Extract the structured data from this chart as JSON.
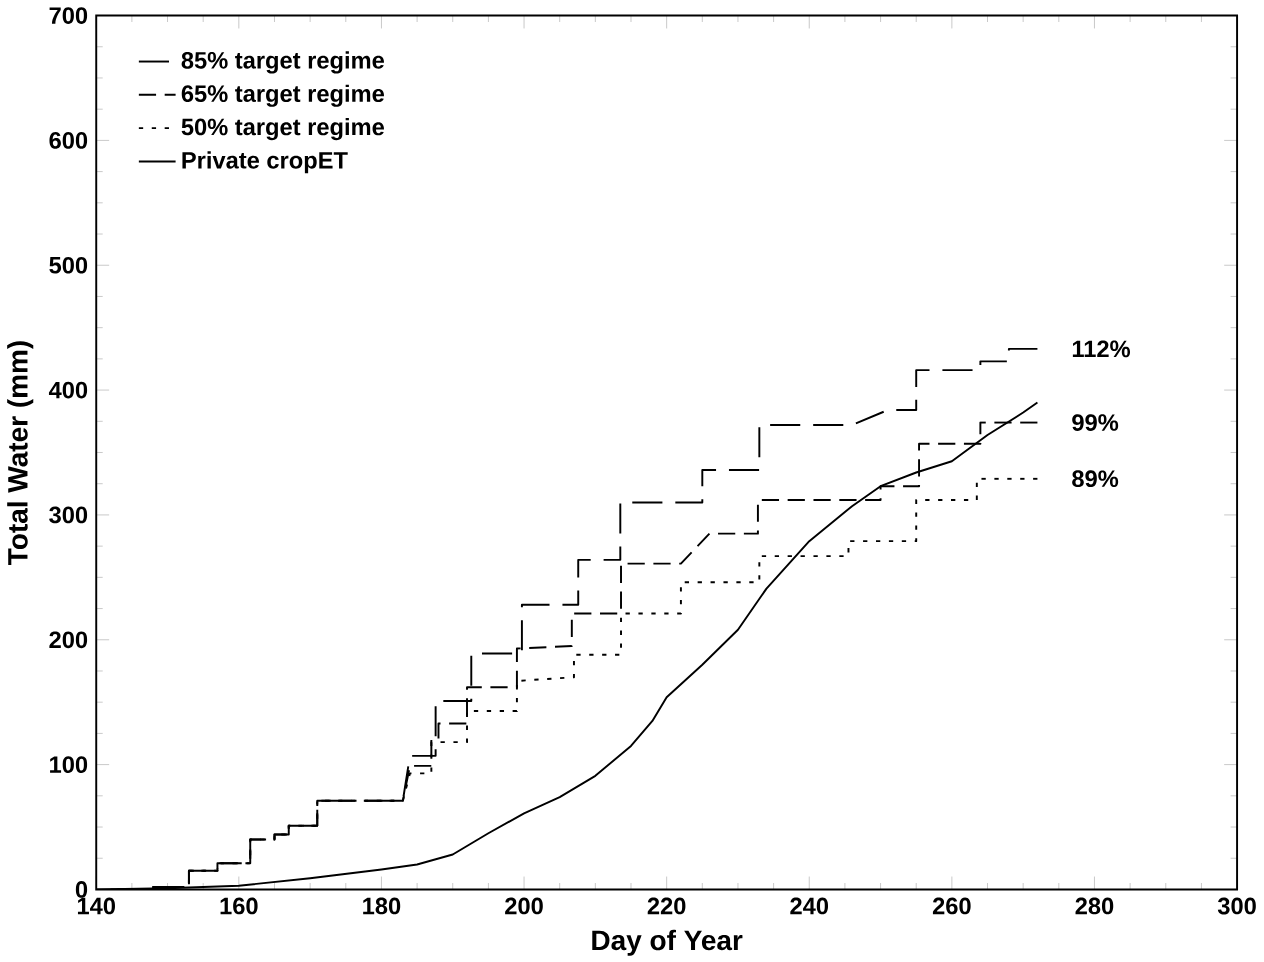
{
  "chart_data": {
    "type": "line",
    "xlabel": "Day of Year",
    "ylabel": "Total Water (mm)",
    "xlim": [
      140,
      300
    ],
    "xticks": [
      140,
      160,
      180,
      200,
      220,
      240,
      260,
      280,
      300
    ],
    "ylim": [
      0,
      700
    ],
    "yticks": [
      0,
      100,
      200,
      300,
      400,
      500,
      600,
      700
    ],
    "legend": "top left",
    "grid": false,
    "marker": "none",
    "series": [
      {
        "name": "85% target regime",
        "color": "#000000",
        "line_style": "dashed",
        "x": [
          142,
          148,
          148,
          153,
          153,
          157,
          157,
          161.6,
          161.6,
          165,
          165,
          167,
          167,
          171,
          171,
          183,
          184,
          187.6,
          187.6,
          192.6,
          192.6,
          199.7,
          199.7,
          207.6,
          207.6,
          213.5,
          213.5,
          225,
          225,
          233,
          233,
          246,
          251,
          255,
          255,
          264,
          264,
          268,
          268,
          272
        ],
        "values": [
          0,
          0,
          2,
          2,
          15,
          15,
          21,
          21,
          40,
          40,
          44,
          44,
          51,
          51,
          71,
          71,
          107,
          107,
          151,
          151,
          189,
          189,
          228,
          228,
          264,
          264,
          310,
          310,
          336,
          336,
          372,
          372,
          384,
          384,
          416,
          416,
          423,
          423,
          433,
          433
        ]
      },
      {
        "name": "65% target regime",
        "color": "#000000",
        "line_style": "dashed",
        "x": [
          142,
          148,
          148,
          153,
          153,
          157,
          157,
          161.6,
          161.6,
          165,
          165,
          167,
          167,
          171,
          171,
          183,
          184,
          187,
          187,
          188,
          188,
          192,
          192,
          199,
          199,
          206.7,
          206.7,
          213.6,
          213.6,
          222,
          226,
          232.8,
          232.8,
          250,
          250,
          255.4,
          255.4,
          264,
          264,
          272
        ],
        "values": [
          0,
          0,
          2,
          2,
          15,
          15,
          21,
          21,
          40,
          40,
          44,
          44,
          51,
          51,
          71,
          71,
          99,
          99,
          120,
          120,
          133,
          133,
          162,
          162,
          193,
          195,
          221,
          221,
          261,
          261,
          285,
          285,
          312,
          312,
          323,
          323,
          357,
          357,
          374,
          374
        ]
      },
      {
        "name": "50% target regime",
        "color": "#000000",
        "line_style": "dotted",
        "x": [
          142,
          148,
          148,
          153,
          153,
          157,
          157,
          161.6,
          161.6,
          165,
          165,
          167,
          167,
          171,
          171,
          183,
          184,
          187,
          187,
          192,
          192,
          199,
          199,
          207,
          207,
          213.6,
          213.6,
          222,
          222,
          233,
          233,
          245.5,
          245.5,
          255,
          255,
          263.5,
          263.5,
          272
        ],
        "values": [
          0,
          0,
          2,
          2,
          15,
          15,
          21,
          21,
          40,
          40,
          44,
          44,
          51,
          51,
          71,
          71,
          93,
          93,
          118,
          118,
          143,
          143,
          167,
          170,
          188,
          188,
          221,
          221,
          246,
          246,
          267,
          267,
          279,
          279,
          312,
          312,
          329,
          329
        ]
      },
      {
        "name": "Private cropET",
        "color": "#000000",
        "line_style": "solid",
        "x": [
          140,
          150,
          160,
          170,
          180,
          185,
          190,
          195,
          200,
          205,
          210,
          215,
          218,
          220,
          225,
          230,
          234,
          240,
          246,
          250,
          255,
          260,
          265,
          270,
          272
        ],
        "values": [
          0,
          1,
          3,
          9,
          16,
          20,
          28,
          45,
          61,
          74,
          91,
          115,
          135,
          154,
          180,
          208,
          241,
          279,
          307,
          323,
          334,
          343,
          364,
          382,
          390
        ]
      }
    ],
    "annotations": [
      "112%",
      "99%",
      "89%"
    ]
  }
}
